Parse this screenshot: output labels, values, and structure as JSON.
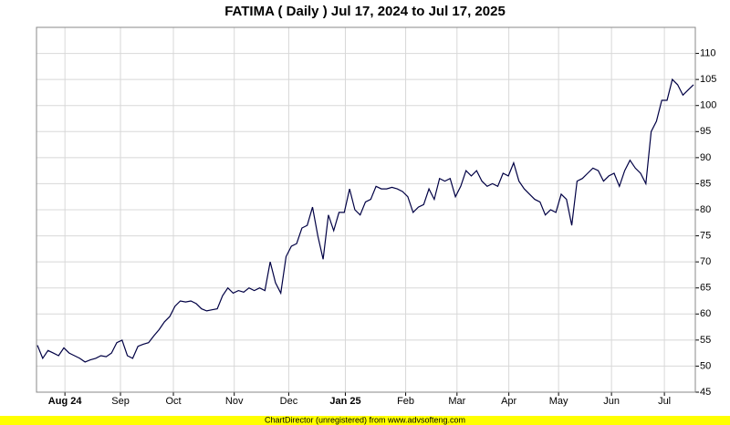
{
  "chart_data": {
    "type": "line",
    "title": "FATIMA ( Daily ) Jul 17, 2024 to Jul 17, 2025",
    "footer": "ChartDirector (unregistered) from www.advsofteng.com",
    "series": [
      {
        "name": "FATIMA",
        "color": "#000044",
        "values": [
          54,
          51.5,
          53,
          52.5,
          52,
          53.5,
          52.5,
          52,
          51.5,
          50.8,
          51.2,
          51.5,
          52,
          51.8,
          52.5,
          54.5,
          55,
          52,
          51.5,
          53.8,
          54.2,
          54.5,
          55.8,
          57,
          58.5,
          59.5,
          61.5,
          62.5,
          62.3,
          62.5,
          62,
          61,
          60.6,
          60.8,
          61,
          63.5,
          65,
          64,
          64.5,
          64.2,
          65,
          64.5,
          65,
          64.5,
          70,
          66,
          64,
          71,
          73,
          73.5,
          76.5,
          77,
          80.5,
          75,
          70.5,
          79,
          76,
          79.5,
          79.5,
          84,
          80,
          79,
          81.5,
          82,
          84.5,
          84,
          84,
          84.3,
          84,
          83.5,
          82.5,
          79.5,
          80.5,
          81,
          84,
          82,
          86,
          85.5,
          86,
          82.5,
          84.5,
          87.5,
          86.5,
          87.5,
          85.5,
          84.5,
          85,
          84.5,
          87,
          86.5,
          89,
          85.5,
          84,
          83,
          82,
          81.5,
          79,
          80,
          79.5,
          83,
          82,
          77,
          85.5,
          86,
          87,
          88,
          87.5,
          85.5,
          86.5,
          87,
          84.5,
          87.5,
          89.5,
          88,
          87,
          85,
          95,
          97,
          101,
          101,
          105,
          104,
          102,
          103,
          104
        ]
      }
    ],
    "xlim": [
      0,
      124
    ],
    "xticks": [
      {
        "value": 5.2,
        "label": "Aug 24"
      },
      {
        "value": 15.7,
        "label": "Sep"
      },
      {
        "value": 25.7,
        "label": "Oct"
      },
      {
        "value": 37.2,
        "label": "Nov"
      },
      {
        "value": 47.5,
        "label": "Dec"
      },
      {
        "value": 58.2,
        "label": "Jan 25"
      },
      {
        "value": 69.6,
        "label": "Feb"
      },
      {
        "value": 79.3,
        "label": "Mar"
      },
      {
        "value": 89.1,
        "label": "Apr"
      },
      {
        "value": 98.5,
        "label": "May"
      },
      {
        "value": 108.5,
        "label": "Jun"
      },
      {
        "value": 118.5,
        "label": "Jul"
      }
    ],
    "ylim": [
      45,
      115
    ],
    "yticks": [
      45,
      50,
      55,
      60,
      65,
      70,
      75,
      80,
      85,
      90,
      95,
      100,
      105,
      110
    ],
    "grid": true
  }
}
